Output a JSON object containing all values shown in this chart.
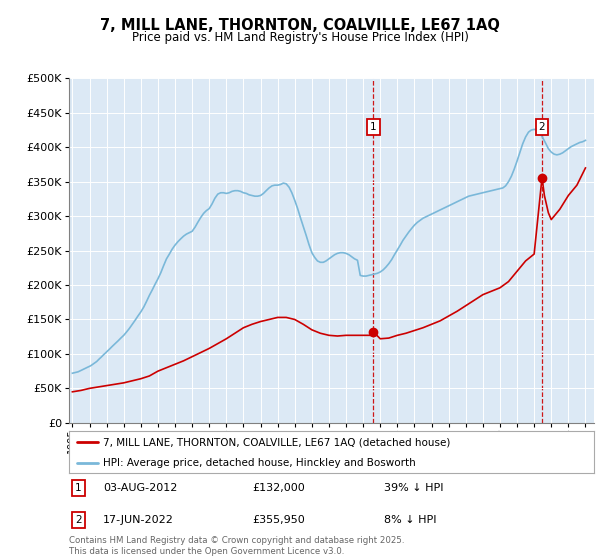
{
  "title": "7, MILL LANE, THORNTON, COALVILLE, LE67 1AQ",
  "subtitle": "Price paid vs. HM Land Registry's House Price Index (HPI)",
  "background_color": "#dce9f5",
  "ylim": [
    0,
    500000
  ],
  "yticks": [
    0,
    50000,
    100000,
    150000,
    200000,
    250000,
    300000,
    350000,
    400000,
    450000,
    500000
  ],
  "xlim_start": 1994.8,
  "xlim_end": 2025.5,
  "purchase1_date": 2012.6,
  "purchase1_price": 132000,
  "purchase1_label": "1",
  "purchase1_info": "03-AUG-2012          £132,000          39% ↓ HPI",
  "purchase2_date": 2022.46,
  "purchase2_price": 355950,
  "purchase2_label": "2",
  "purchase2_info": "17-JUN-2022          £355,950          8% ↓ HPI",
  "legend_entry1": "7, MILL LANE, THORNTON, COALVILLE, LE67 1AQ (detached house)",
  "legend_entry2": "HPI: Average price, detached house, Hinckley and Bosworth",
  "footer": "Contains HM Land Registry data © Crown copyright and database right 2025.\nThis data is licensed under the Open Government Licence v3.0.",
  "hpi_color": "#7ab8d9",
  "price_color": "#cc0000",
  "label_box_color": "#cc0000",
  "hpi_data_x": [
    1995.0,
    1995.08,
    1995.17,
    1995.25,
    1995.33,
    1995.42,
    1995.5,
    1995.58,
    1995.67,
    1995.75,
    1995.83,
    1995.92,
    1996.0,
    1996.08,
    1996.17,
    1996.25,
    1996.33,
    1996.42,
    1996.5,
    1996.58,
    1996.67,
    1996.75,
    1996.83,
    1996.92,
    1997.0,
    1997.17,
    1997.33,
    1997.5,
    1997.67,
    1997.83,
    1998.0,
    1998.17,
    1998.33,
    1998.5,
    1998.67,
    1998.83,
    1999.0,
    1999.17,
    1999.33,
    1999.5,
    1999.67,
    1999.83,
    2000.0,
    2000.17,
    2000.33,
    2000.5,
    2000.67,
    2000.83,
    2001.0,
    2001.17,
    2001.33,
    2001.5,
    2001.67,
    2001.83,
    2002.0,
    2002.17,
    2002.33,
    2002.5,
    2002.67,
    2002.83,
    2003.0,
    2003.17,
    2003.33,
    2003.5,
    2003.67,
    2003.83,
    2004.0,
    2004.17,
    2004.33,
    2004.5,
    2004.67,
    2004.83,
    2005.0,
    2005.17,
    2005.33,
    2005.5,
    2005.67,
    2005.83,
    2006.0,
    2006.17,
    2006.33,
    2006.5,
    2006.67,
    2006.83,
    2007.0,
    2007.17,
    2007.33,
    2007.5,
    2007.67,
    2007.83,
    2008.0,
    2008.17,
    2008.33,
    2008.5,
    2008.67,
    2008.83,
    2009.0,
    2009.17,
    2009.33,
    2009.5,
    2009.67,
    2009.83,
    2010.0,
    2010.17,
    2010.33,
    2010.5,
    2010.67,
    2010.83,
    2011.0,
    2011.17,
    2011.33,
    2011.5,
    2011.67,
    2011.83,
    2012.0,
    2012.17,
    2012.33,
    2012.5,
    2012.67,
    2012.83,
    2013.0,
    2013.17,
    2013.33,
    2013.5,
    2013.67,
    2013.83,
    2014.0,
    2014.17,
    2014.33,
    2014.5,
    2014.67,
    2014.83,
    2015.0,
    2015.17,
    2015.33,
    2015.5,
    2015.67,
    2015.83,
    2016.0,
    2016.17,
    2016.33,
    2016.5,
    2016.67,
    2016.83,
    2017.0,
    2017.17,
    2017.33,
    2017.5,
    2017.67,
    2017.83,
    2018.0,
    2018.17,
    2018.33,
    2018.5,
    2018.67,
    2018.83,
    2019.0,
    2019.17,
    2019.33,
    2019.5,
    2019.67,
    2019.83,
    2020.0,
    2020.17,
    2020.33,
    2020.5,
    2020.67,
    2020.83,
    2021.0,
    2021.17,
    2021.33,
    2021.5,
    2021.67,
    2021.83,
    2022.0,
    2022.17,
    2022.33,
    2022.5,
    2022.67,
    2022.83,
    2023.0,
    2023.17,
    2023.33,
    2023.5,
    2023.67,
    2023.83,
    2024.0,
    2024.17,
    2024.33,
    2024.5,
    2024.67,
    2024.83,
    2025.0
  ],
  "hpi_data_y": [
    72000,
    72500,
    73000,
    73500,
    74000,
    75000,
    76000,
    77000,
    78000,
    79000,
    80000,
    81000,
    82000,
    83000,
    84500,
    86000,
    87500,
    89000,
    91000,
    93000,
    95000,
    97000,
    99000,
    101000,
    103000,
    107000,
    111000,
    115000,
    119000,
    123000,
    127000,
    132000,
    137000,
    143000,
    149000,
    155000,
    161000,
    168000,
    176000,
    185000,
    193000,
    201000,
    209000,
    218000,
    228000,
    238000,
    245000,
    252000,
    258000,
    263000,
    267000,
    271000,
    274000,
    276000,
    278000,
    284000,
    291000,
    298000,
    304000,
    308000,
    311000,
    318000,
    326000,
    332000,
    334000,
    334000,
    333000,
    334000,
    336000,
    337000,
    337000,
    336000,
    334000,
    333000,
    331000,
    330000,
    329000,
    329000,
    330000,
    333000,
    337000,
    341000,
    344000,
    345000,
    345000,
    346000,
    348000,
    347000,
    342000,
    334000,
    323000,
    311000,
    298000,
    285000,
    272000,
    259000,
    247000,
    240000,
    235000,
    233000,
    233000,
    235000,
    238000,
    241000,
    244000,
    246000,
    247000,
    247000,
    246000,
    244000,
    241000,
    238000,
    236000,
    214000,
    213000,
    213000,
    214000,
    215000,
    216000,
    217000,
    219000,
    222000,
    226000,
    231000,
    237000,
    244000,
    251000,
    258000,
    265000,
    271000,
    277000,
    282000,
    287000,
    291000,
    294000,
    297000,
    299000,
    301000,
    303000,
    305000,
    307000,
    309000,
    311000,
    313000,
    315000,
    317000,
    319000,
    321000,
    323000,
    325000,
    327000,
    329000,
    330000,
    331000,
    332000,
    333000,
    334000,
    335000,
    336000,
    337000,
    338000,
    339000,
    340000,
    341000,
    344000,
    350000,
    358000,
    368000,
    380000,
    393000,
    405000,
    415000,
    422000,
    425000,
    426000,
    425000,
    421000,
    414000,
    406000,
    398000,
    393000,
    390000,
    389000,
    390000,
    392000,
    395000,
    398000,
    401000,
    403000,
    405000,
    407000,
    408000,
    410000
  ],
  "price_data_x": [
    1995.0,
    1995.5,
    1996.0,
    1997.0,
    1998.0,
    1999.0,
    1999.5,
    2000.0,
    2000.5,
    2001.0,
    2001.5,
    2002.0,
    2002.5,
    2003.0,
    2003.5,
    2004.0,
    2004.5,
    2005.0,
    2005.5,
    2006.0,
    2006.5,
    2007.0,
    2007.5,
    2008.0,
    2008.5,
    2009.0,
    2009.5,
    2010.0,
    2010.5,
    2011.0,
    2011.5,
    2012.0,
    2012.5,
    2012.6,
    2013.0,
    2013.5,
    2014.0,
    2014.5,
    2015.0,
    2015.5,
    2016.0,
    2016.5,
    2017.0,
    2017.5,
    2018.0,
    2018.5,
    2019.0,
    2019.5,
    2020.0,
    2020.5,
    2021.0,
    2021.5,
    2022.0,
    2022.46,
    2022.6,
    2022.83,
    2023.0,
    2023.5,
    2024.0,
    2024.5,
    2025.0
  ],
  "price_data_y": [
    45000,
    47000,
    50000,
    54000,
    58000,
    64000,
    68000,
    75000,
    80000,
    85000,
    90000,
    96000,
    102000,
    108000,
    115000,
    122000,
    130000,
    138000,
    143000,
    147000,
    150000,
    153000,
    153000,
    150000,
    143000,
    135000,
    130000,
    127000,
    126000,
    127000,
    127000,
    127000,
    127000,
    132000,
    122000,
    123000,
    127000,
    130000,
    134000,
    138000,
    143000,
    148000,
    155000,
    162000,
    170000,
    178000,
    186000,
    191000,
    196000,
    205000,
    220000,
    235000,
    245000,
    355950,
    330000,
    305000,
    295000,
    310000,
    330000,
    345000,
    370000
  ]
}
